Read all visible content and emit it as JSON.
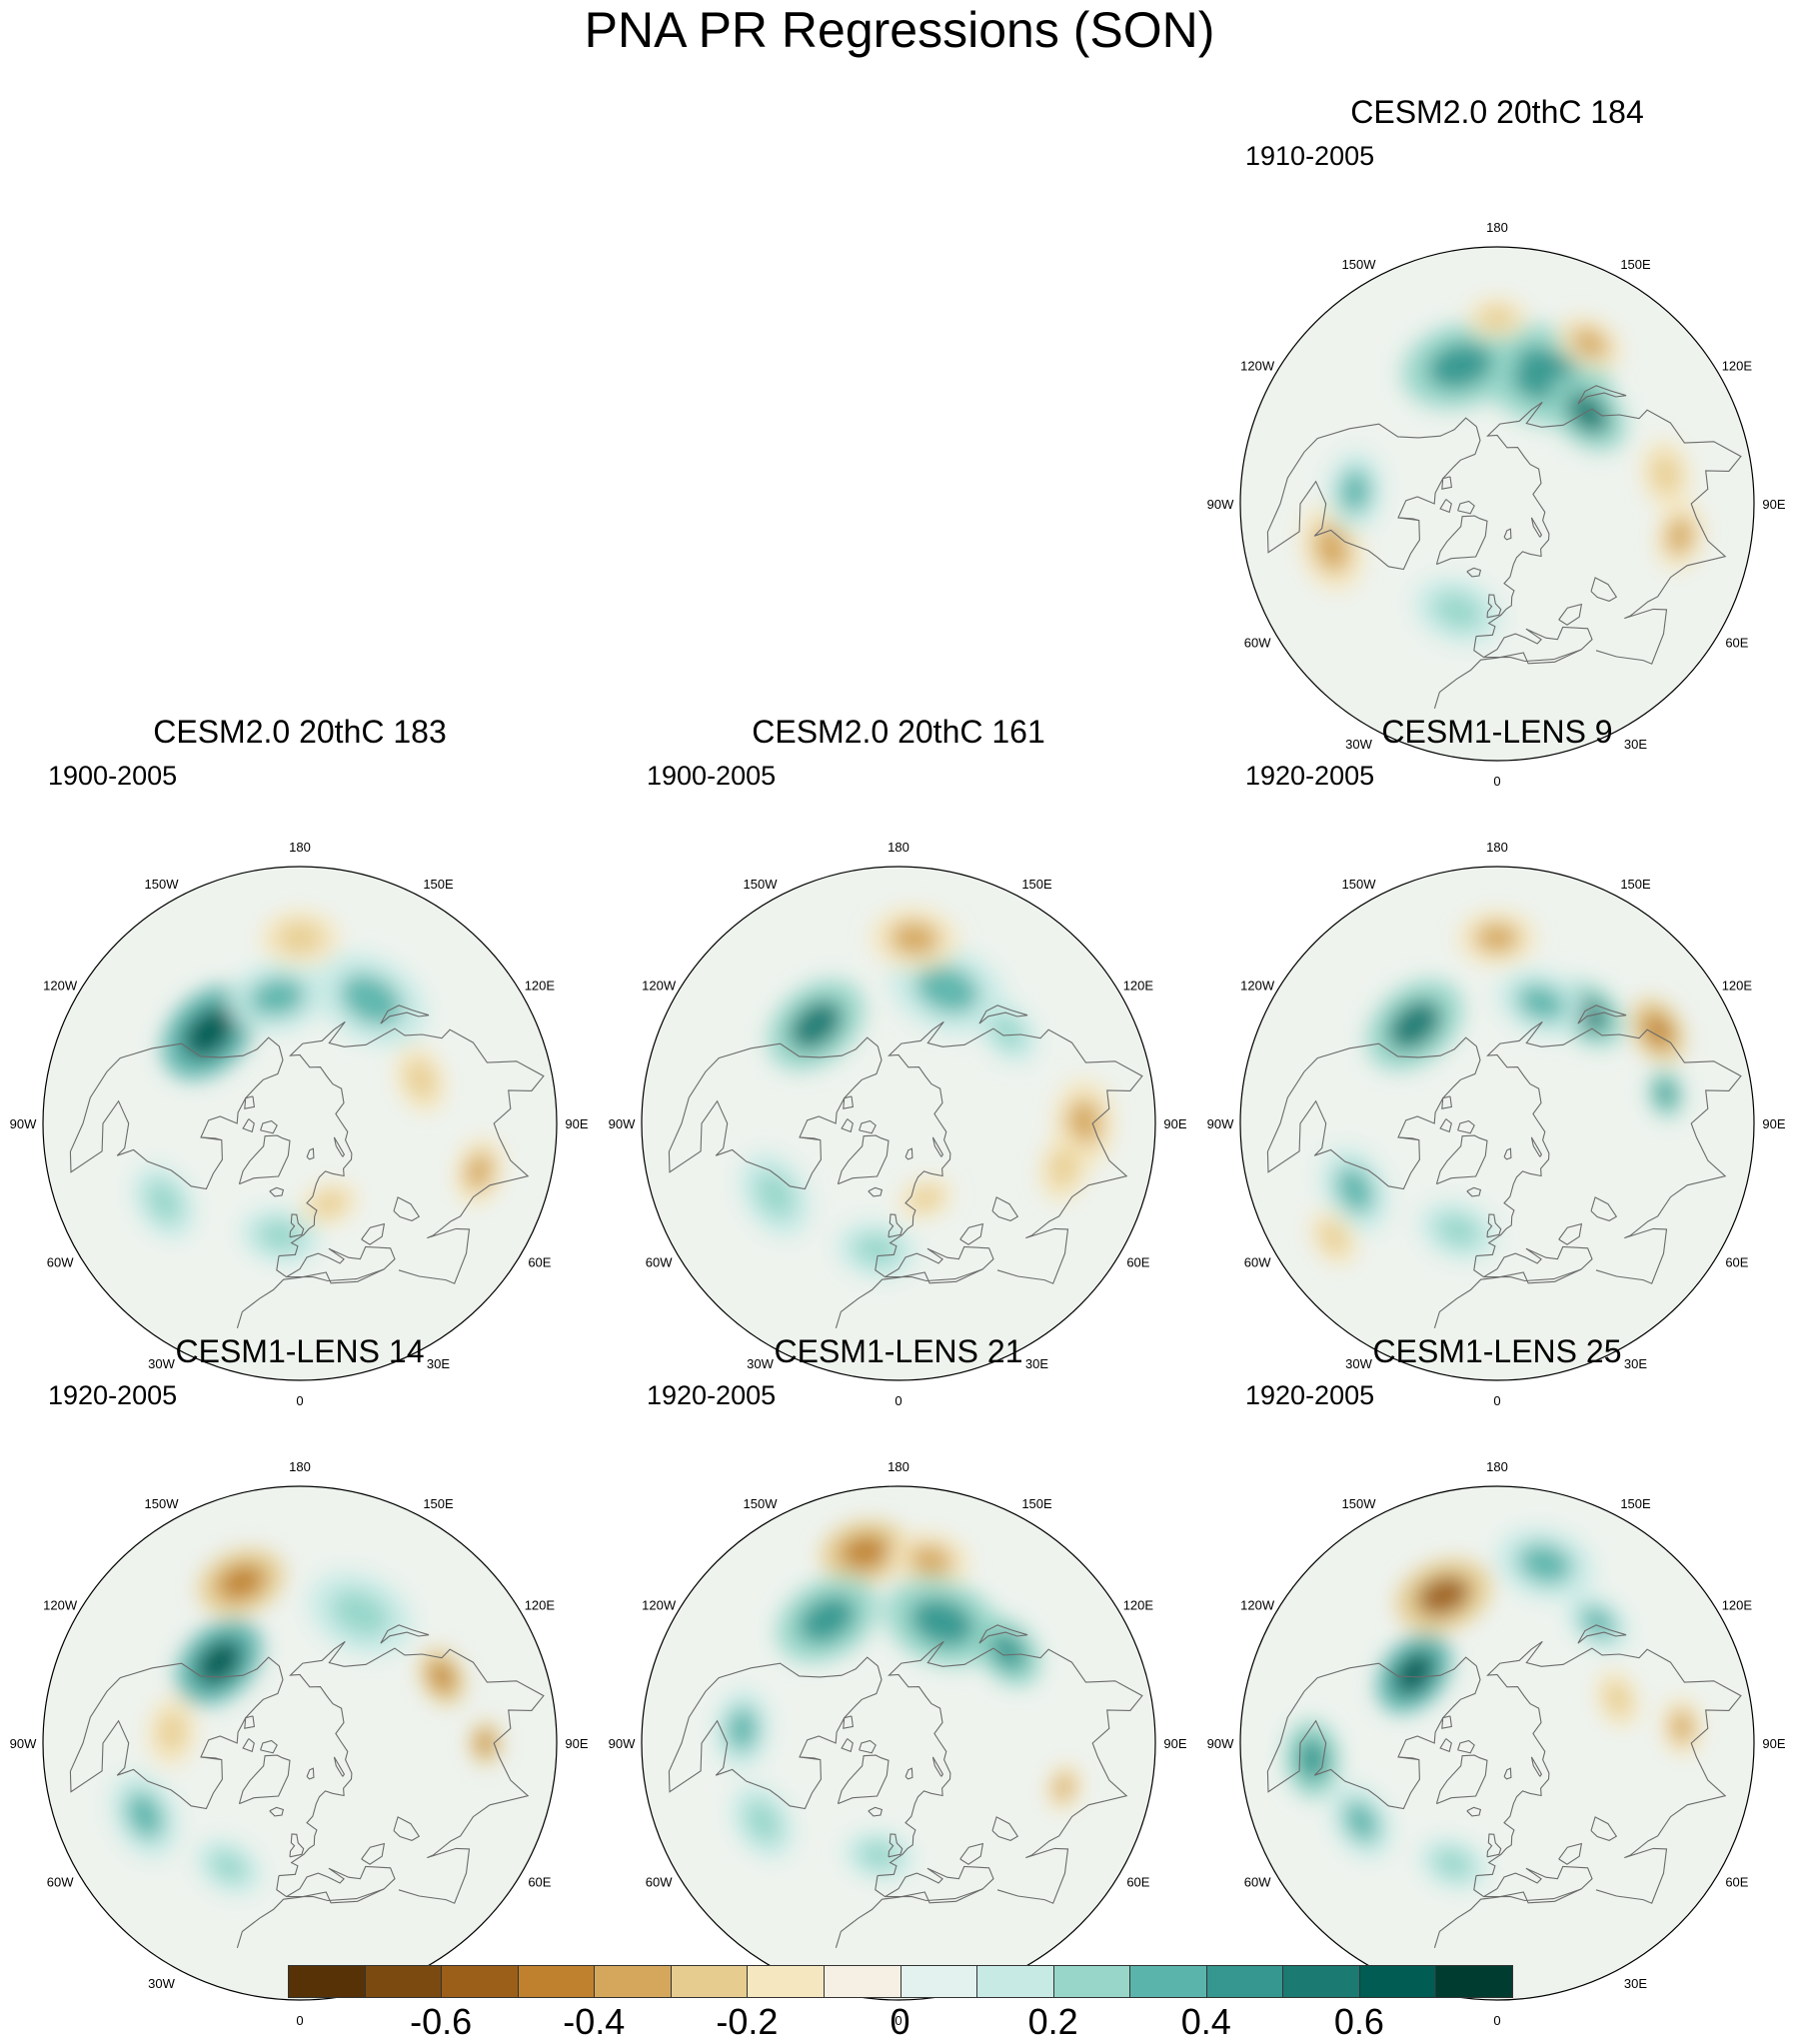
{
  "title": "PNA PR Regressions (SON)",
  "panels": [
    {
      "id": "cesm2-184",
      "title": "CESM2.0 20thC 184",
      "period": "1910-2005",
      "blobs": [
        {
          "lon": 160,
          "lat": 42,
          "r": 70,
          "level": 0.45
        },
        {
          "lon": -165,
          "lat": 40,
          "r": 60,
          "level": 0.4
        },
        {
          "lon": 135,
          "lat": 45,
          "r": 45,
          "level": 0.55
        },
        {
          "lon": 150,
          "lat": 25,
          "r": 35,
          "level": -0.35
        },
        {
          "lon": 180,
          "lat": 25,
          "r": 30,
          "level": -0.3
        },
        {
          "lon": -75,
          "lat": 30,
          "r": 45,
          "level": -0.35
        },
        {
          "lon": 80,
          "lat": 25,
          "r": 35,
          "level": -0.35
        },
        {
          "lon": -20,
          "lat": 50,
          "r": 45,
          "level": 0.2
        },
        {
          "lon": -95,
          "lat": 40,
          "r": 40,
          "level": 0.3
        },
        {
          "lon": 100,
          "lat": 30,
          "r": 35,
          "level": -0.25
        }
      ]
    },
    {
      "id": "cesm2-183",
      "title": "CESM2.0 20thC 183",
      "period": "1900-2005",
      "blobs": [
        {
          "lon": -135,
          "lat": 45,
          "r": 55,
          "level": 0.6
        },
        {
          "lon": -170,
          "lat": 45,
          "r": 50,
          "level": 0.35
        },
        {
          "lon": 150,
          "lat": 40,
          "r": 60,
          "level": 0.35
        },
        {
          "lon": 180,
          "lat": 25,
          "r": 40,
          "level": -0.3
        },
        {
          "lon": 110,
          "lat": 45,
          "r": 35,
          "level": -0.25
        },
        {
          "lon": 75,
          "lat": 25,
          "r": 35,
          "level": -0.35
        },
        {
          "lon": -60,
          "lat": 35,
          "r": 40,
          "level": 0.2
        },
        {
          "lon": -10,
          "lat": 50,
          "r": 40,
          "level": 0.25
        },
        {
          "lon": 20,
          "lat": 60,
          "r": 30,
          "level": -0.25
        }
      ]
    },
    {
      "id": "cesm2-161",
      "title": "CESM2.0 20thC 161",
      "period": "1900-2005",
      "blobs": [
        {
          "lon": -140,
          "lat": 45,
          "r": 55,
          "level": 0.55
        },
        {
          "lon": 160,
          "lat": 40,
          "r": 60,
          "level": 0.35
        },
        {
          "lon": 175,
          "lat": 25,
          "r": 45,
          "level": -0.35
        },
        {
          "lon": 90,
          "lat": 25,
          "r": 45,
          "level": -0.4
        },
        {
          "lon": 75,
          "lat": 30,
          "r": 35,
          "level": -0.3
        },
        {
          "lon": 130,
          "lat": 40,
          "r": 35,
          "level": 0.25
        },
        {
          "lon": -60,
          "lat": 40,
          "r": 45,
          "level": 0.2
        },
        {
          "lon": -10,
          "lat": 45,
          "r": 40,
          "level": 0.25
        },
        {
          "lon": 20,
          "lat": 62,
          "r": 28,
          "level": -0.3
        }
      ]
    },
    {
      "id": "cesm1-9",
      "title": "CESM1-LENS 9",
      "period": "1920-2005",
      "blobs": [
        {
          "lon": -140,
          "lat": 45,
          "r": 55,
          "level": 0.55
        },
        {
          "lon": 140,
          "lat": 40,
          "r": 40,
          "level": 0.55
        },
        {
          "lon": 180,
          "lat": 25,
          "r": 40,
          "level": -0.4
        },
        {
          "lon": 120,
          "lat": 25,
          "r": 35,
          "level": -0.5
        },
        {
          "lon": 100,
          "lat": 30,
          "r": 25,
          "level": 0.45
        },
        {
          "lon": -65,
          "lat": 35,
          "r": 45,
          "level": 0.35
        },
        {
          "lon": -55,
          "lat": 20,
          "r": 30,
          "level": -0.3
        },
        {
          "lon": -20,
          "lat": 50,
          "r": 40,
          "level": 0.2
        },
        {
          "lon": 160,
          "lat": 45,
          "r": 45,
          "level": 0.3
        }
      ]
    },
    {
      "id": "cesm1-14",
      "title": "CESM1-LENS 14",
      "period": "1920-2005",
      "blobs": [
        {
          "lon": -160,
          "lat": 30,
          "r": 45,
          "level": -0.5
        },
        {
          "lon": -135,
          "lat": 50,
          "r": 50,
          "level": 0.6
        },
        {
          "lon": 155,
          "lat": 40,
          "r": 55,
          "level": 0.2
        },
        {
          "lon": 115,
          "lat": 35,
          "r": 30,
          "level": -0.45
        },
        {
          "lon": 90,
          "lat": 25,
          "r": 22,
          "level": -0.5
        },
        {
          "lon": -65,
          "lat": 30,
          "r": 45,
          "level": 0.35
        },
        {
          "lon": -30,
          "lat": 40,
          "r": 35,
          "level": 0.25
        },
        {
          "lon": -95,
          "lat": 45,
          "r": 35,
          "level": -0.25
        }
      ]
    },
    {
      "id": "cesm1-21",
      "title": "CESM1-LENS 21",
      "period": "1920-2005",
      "blobs": [
        {
          "lon": -170,
          "lat": 22,
          "r": 45,
          "level": -0.5
        },
        {
          "lon": 170,
          "lat": 25,
          "r": 40,
          "level": -0.35
        },
        {
          "lon": -150,
          "lat": 40,
          "r": 55,
          "level": 0.45
        },
        {
          "lon": 160,
          "lat": 45,
          "r": 60,
          "level": 0.4
        },
        {
          "lon": 130,
          "lat": 40,
          "r": 40,
          "level": 0.4
        },
        {
          "lon": -95,
          "lat": 35,
          "r": 40,
          "level": 0.3
        },
        {
          "lon": 75,
          "lat": 30,
          "r": 25,
          "level": -0.4
        },
        {
          "lon": -60,
          "lat": 35,
          "r": 40,
          "level": 0.25
        },
        {
          "lon": -10,
          "lat": 50,
          "r": 35,
          "level": 0.25
        }
      ]
    },
    {
      "id": "cesm1-25",
      "title": "CESM1-LENS 25",
      "period": "1920-2005",
      "blobs": [
        {
          "lon": -160,
          "lat": 35,
          "r": 50,
          "level": -0.55
        },
        {
          "lon": -130,
          "lat": 52,
          "r": 45,
          "level": 0.6
        },
        {
          "lon": 165,
          "lat": 25,
          "r": 50,
          "level": 0.35
        },
        {
          "lon": 140,
          "lat": 35,
          "r": 35,
          "level": 0.3
        },
        {
          "lon": 95,
          "lat": 25,
          "r": 30,
          "level": -0.4
        },
        {
          "lon": -85,
          "lat": 25,
          "r": 40,
          "level": 0.45
        },
        {
          "lon": -60,
          "lat": 35,
          "r": 40,
          "level": 0.3
        },
        {
          "lon": 110,
          "lat": 45,
          "r": 30,
          "level": -0.25
        },
        {
          "lon": -20,
          "lat": 45,
          "r": 35,
          "level": 0.2
        }
      ]
    }
  ],
  "longitude_labels": [
    {
      "text": "180",
      "lon": 180
    },
    {
      "text": "150E",
      "lon": 150
    },
    {
      "text": "120E",
      "lon": 120
    },
    {
      "text": "90E",
      "lon": 90
    },
    {
      "text": "60E",
      "lon": 60
    },
    {
      "text": "30E",
      "lon": 30
    },
    {
      "text": "0",
      "lon": 0
    },
    {
      "text": "30W",
      "lon": -30
    },
    {
      "text": "60W",
      "lon": -60
    },
    {
      "text": "90W",
      "lon": -90
    },
    {
      "text": "120W",
      "lon": -120
    },
    {
      "text": "150W",
      "lon": -150
    }
  ],
  "colorbar": {
    "levels": [
      -0.7,
      -0.6,
      -0.5,
      -0.4,
      -0.3,
      -0.2,
      -0.1,
      0,
      0.1,
      0.2,
      0.3,
      0.4,
      0.5,
      0.6,
      0.7
    ],
    "colors": [
      "#563206",
      "#7a4a10",
      "#9c5f1a",
      "#bf812d",
      "#d4a75c",
      "#e6cc8f",
      "#f5e7c0",
      "#f5f0e3",
      "#e3f1ef",
      "#c7eae5",
      "#97d6c9",
      "#5ab4ac",
      "#35978f",
      "#1b7a72",
      "#015c53",
      "#003c30"
    ],
    "tick_labels": [
      "-0.6",
      "-0.4",
      "-0.2",
      "0",
      "0.2",
      "0.4",
      "0.6"
    ]
  }
}
